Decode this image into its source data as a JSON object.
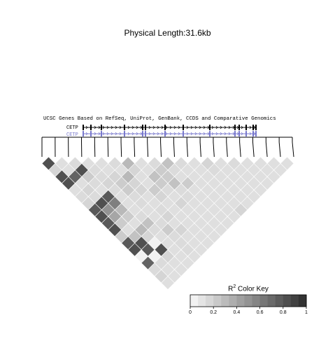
{
  "title": "Physical Length:31.6kb",
  "track": {
    "title": "UCSC Genes Based on RefSeq, UniProt, GenBank, CCDS and Comparative Genomics",
    "genes": [
      {
        "name": "CETP",
        "color": "#000000"
      },
      {
        "name": "CETP",
        "color": "#7777cc"
      }
    ]
  },
  "color_key": {
    "title": "R",
    "superscript": "2",
    "title_suffix": " Color Key",
    "ticks": [
      "0",
      "0.2",
      "0.4",
      "0.6",
      "0.8",
      "1"
    ],
    "low_color": "#f2f2f2",
    "high_color": "#333333"
  },
  "ld_values": [
    [
      0.85,
      0.1,
      0.12,
      0.1,
      0.1,
      0.12,
      0.3,
      0.1,
      0.12,
      0.25,
      0.12,
      0.1,
      0.15,
      0.1,
      0.12,
      0.1,
      0.1,
      0.1,
      0.1
    ],
    [
      0.15,
      0.1,
      0.85,
      0.12,
      0.1,
      0.1,
      0.15,
      0.1,
      0.2,
      0.12,
      0.1,
      0.1,
      0.12,
      0.1,
      0.1,
      0.1,
      0.1,
      0.1
    ],
    [
      0.85,
      0.75,
      0.2,
      0.12,
      0.15,
      0.3,
      0.1,
      0.25,
      0.2,
      0.1,
      0.1,
      0.1,
      0.1,
      0.1,
      0.1,
      0.1,
      0.1
    ],
    [
      0.85,
      0.1,
      0.12,
      0.15,
      0.2,
      0.15,
      0.1,
      0.2,
      0.25,
      0.2,
      0.1,
      0.1,
      0.1,
      0.1,
      0.1,
      0.1
    ],
    [
      0.1,
      0.15,
      0.1,
      0.12,
      0.2,
      0.15,
      0.2,
      0.12,
      0.12,
      0.1,
      0.1,
      0.1,
      0.1,
      0.1,
      0.1
    ],
    [
      0.12,
      0.12,
      0.8,
      0.1,
      0.12,
      0.1,
      0.15,
      0.1,
      0.12,
      0.1,
      0.1,
      0.1,
      0.1,
      0.1
    ],
    [
      0.15,
      0.85,
      0.6,
      0.1,
      0.12,
      0.1,
      0.1,
      0.15,
      0.1,
      0.1,
      0.1,
      0.1,
      0.1
    ],
    [
      0.8,
      0.5,
      0.3,
      0.1,
      0.1,
      0.12,
      0.1,
      0.1,
      0.1,
      0.1,
      0.1,
      0.15
    ],
    [
      0.85,
      0.4,
      0.2,
      0.12,
      0.1,
      0.15,
      0.1,
      0.1,
      0.1,
      0.1,
      0.1
    ],
    [
      0.8,
      0.2,
      0.1,
      0.25,
      0.12,
      0.1,
      0.1,
      0.1,
      0.1,
      0.1
    ],
    [
      0.85,
      0.1,
      0.3,
      0.12,
      0.2,
      0.15,
      0.1,
      0.1,
      0.1
    ],
    [
      0.2,
      0.25,
      0.15,
      0.1,
      0.12,
      0.1,
      0.1,
      0.1
    ],
    [
      0.8,
      0.85,
      0.0,
      0.1,
      0.12,
      0.1,
      0.1
    ],
    [
      0.85,
      0.8,
      0.85,
      0.1,
      0.12,
      0.1
    ],
    [
      0.0,
      0.0,
      0.15,
      0.1,
      0.1
    ],
    [
      0.75,
      0.12,
      0.1,
      0.1
    ],
    [
      0.12,
      0.1,
      0.1
    ],
    [
      0.15,
      0.1
    ],
    [
      0.1
    ]
  ]
}
